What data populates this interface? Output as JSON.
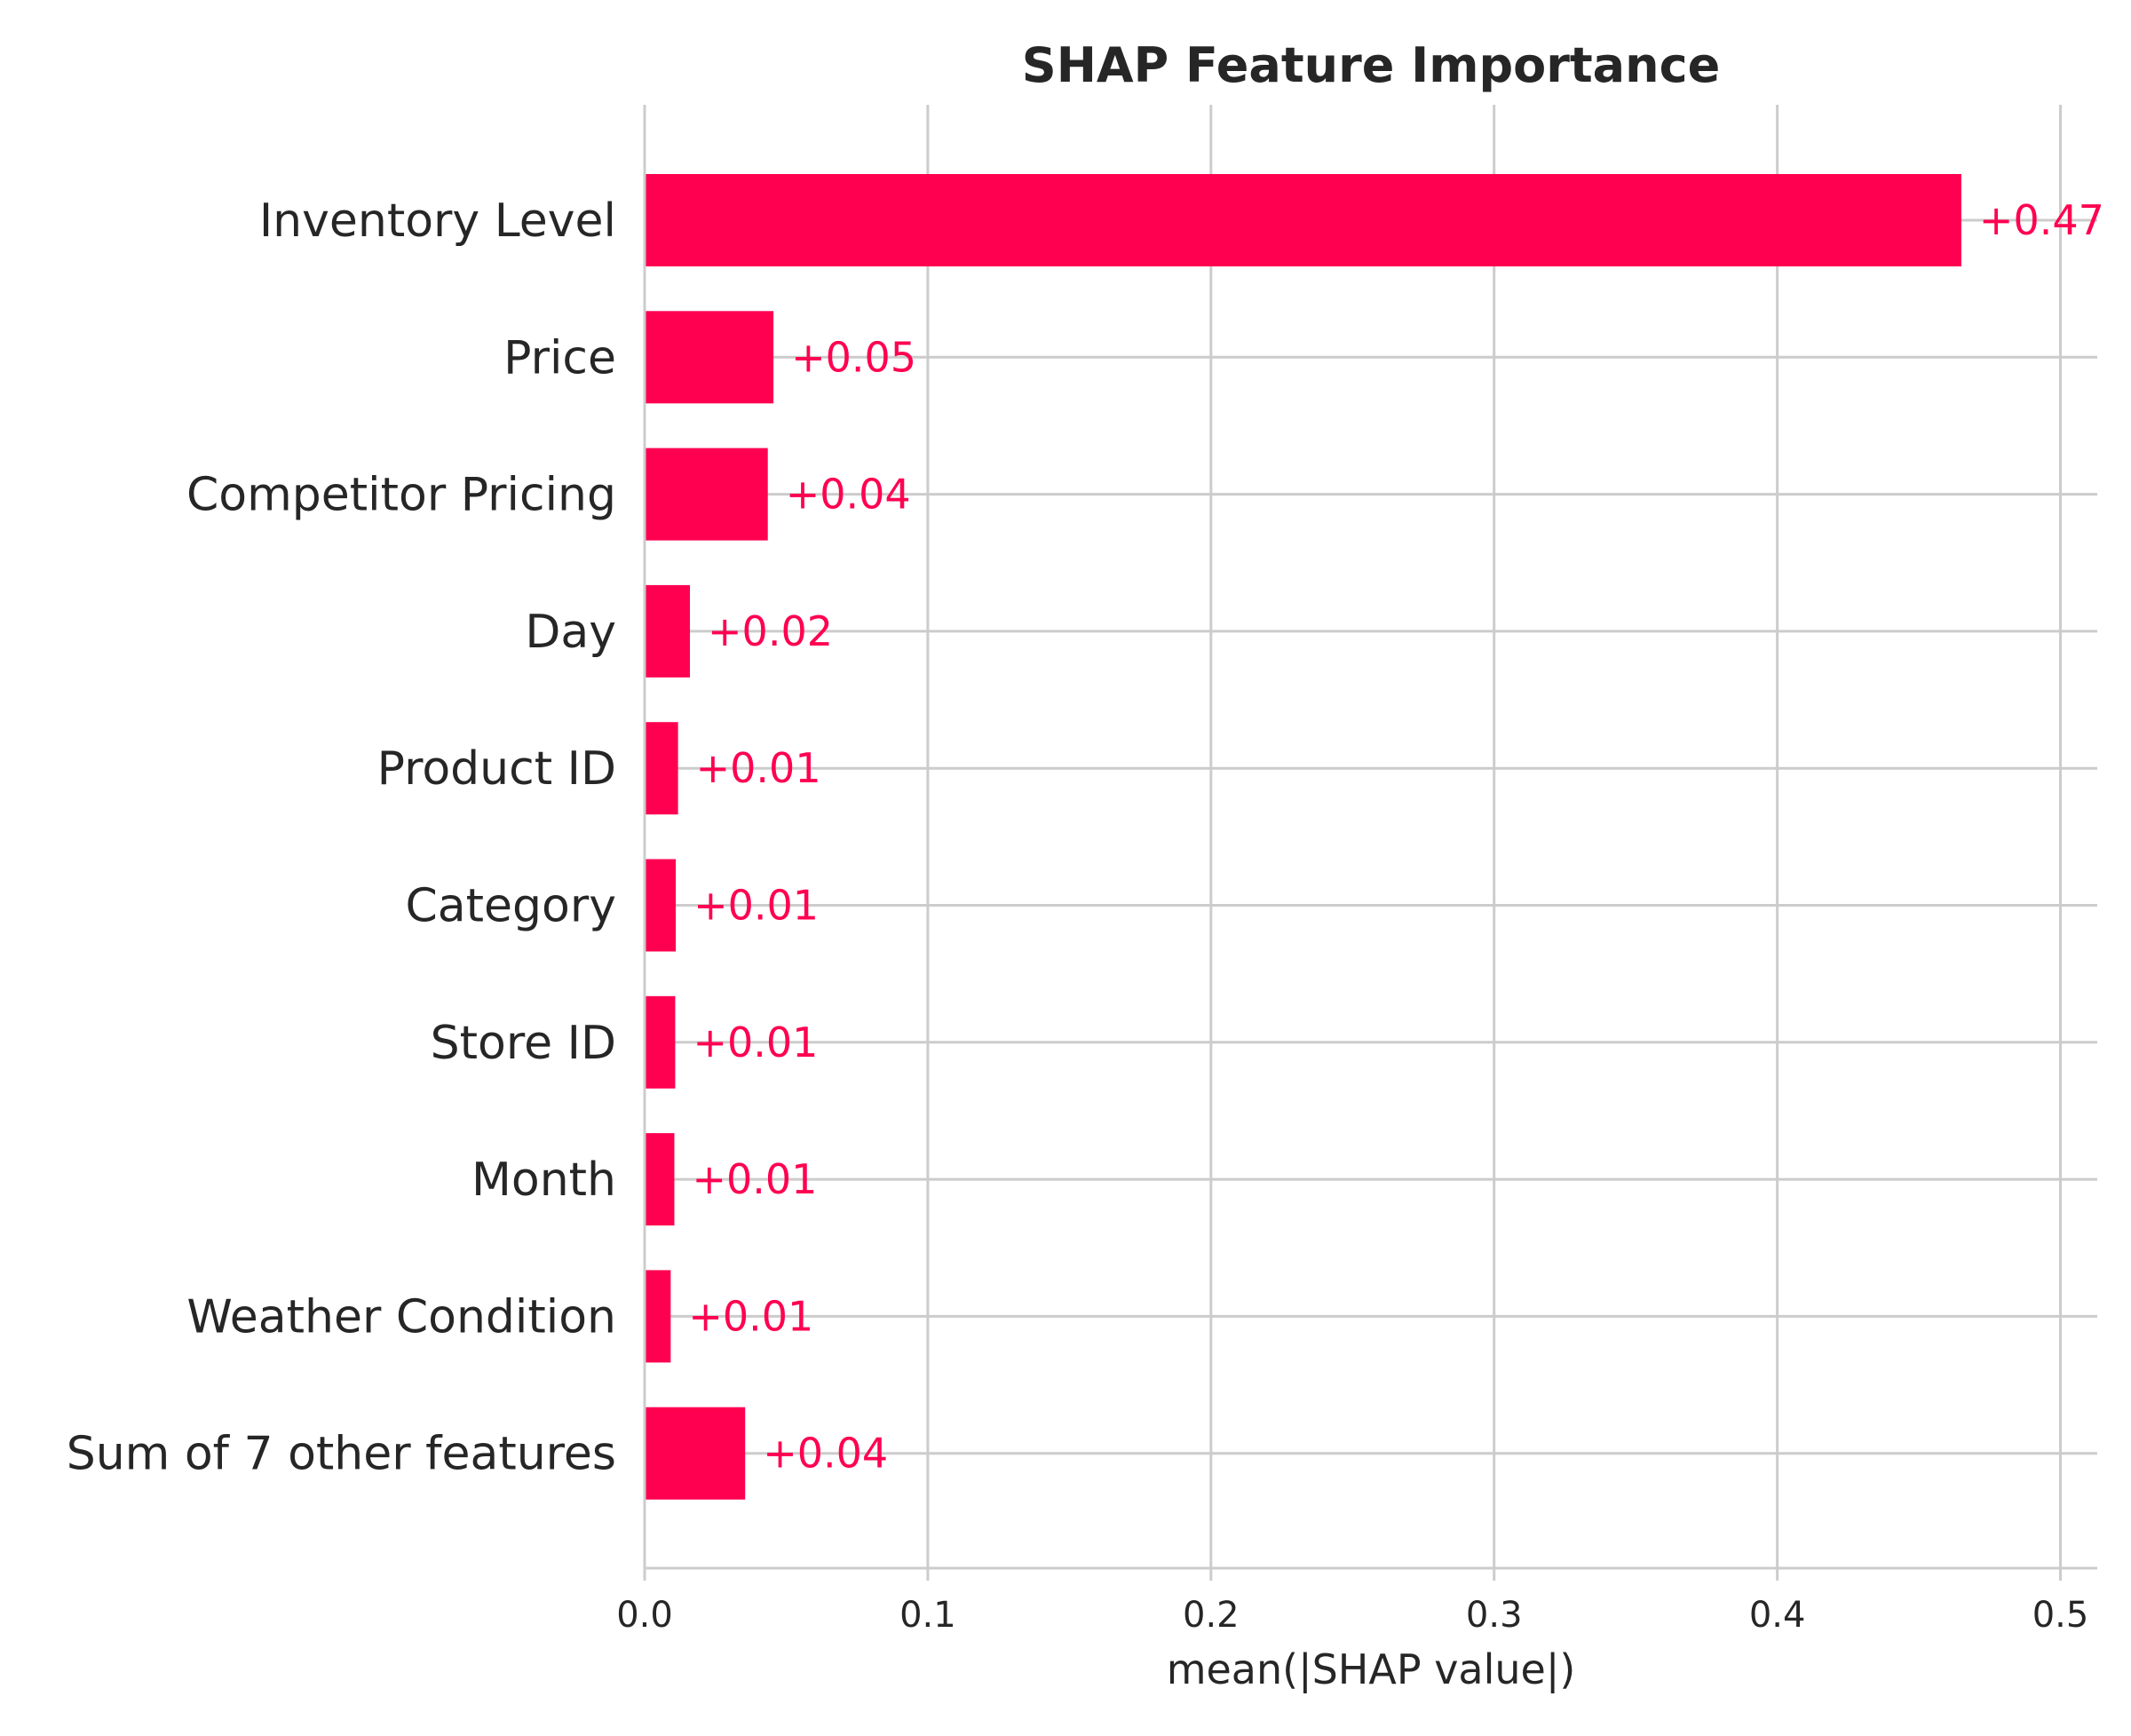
{
  "chart_data": {
    "type": "bar",
    "orientation": "horizontal",
    "title": "SHAP Feature Importance",
    "xlabel": "mean(|SHAP value|)",
    "ylabel": "",
    "xlim": [
      0,
      0.513
    ],
    "xticks": [
      "0.0",
      "0.1",
      "0.2",
      "0.3",
      "0.4",
      "0.5"
    ],
    "grid": true,
    "color": "#ff0051",
    "categories": [
      "Inventory Level",
      "Price",
      "Competitor Pricing",
      "Day",
      "Product ID",
      "Category",
      "Store ID",
      "Month",
      "Weather Condition",
      "Sum of 7 other features"
    ],
    "values": [
      0.465,
      0.0455,
      0.0435,
      0.016,
      0.0118,
      0.011,
      0.0108,
      0.0105,
      0.0092,
      0.0355
    ],
    "value_labels": [
      "+0.47",
      "+0.05",
      "+0.04",
      "+0.02",
      "+0.01",
      "+0.01",
      "+0.01",
      "+0.01",
      "+0.01",
      "+0.04"
    ]
  }
}
